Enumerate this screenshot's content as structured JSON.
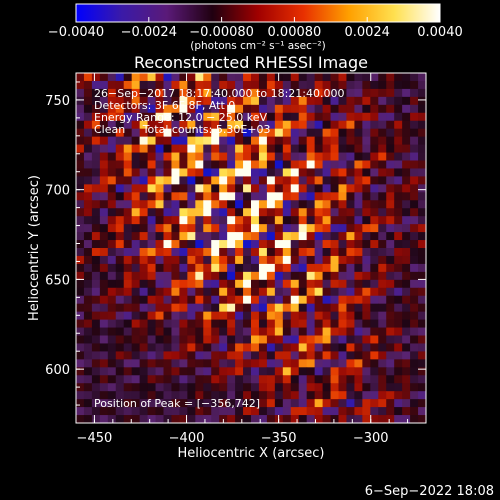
{
  "chart_data": {
    "type": "heatmap",
    "title": "Reconstructed RHESSI Image",
    "xlabel": "Heliocentric X (arcsec)",
    "ylabel": "Heliocentric Y (arcsec)",
    "xlim": [
      -460,
      -270
    ],
    "ylim": [
      570,
      765
    ],
    "x_ticks": [
      -450,
      -400,
      -350,
      -300
    ],
    "x_tick_labels": [
      "−450",
      "−400",
      "−350",
      "−300"
    ],
    "y_ticks": [
      600,
      650,
      700,
      750
    ],
    "y_tick_labels": [
      "600",
      "650",
      "700",
      "750"
    ],
    "colorbar": {
      "range": [
        -0.004,
        0.004
      ],
      "ticks": [
        -0.004,
        -0.0024,
        -0.0008,
        0.0008,
        0.0024,
        0.004
      ],
      "tick_labels": [
        "−0.0040",
        "−0.0024",
        "−0.00080",
        "0.00080",
        "0.0024",
        "0.0040"
      ],
      "units": "(photons cm⁻² s⁻¹ asec⁻²)",
      "colormap": [
        "#0000ff",
        "#3a1aa8",
        "#5a1a78",
        "#200010",
        "#a00000",
        "#e83000",
        "#ffa000",
        "#ffe050",
        "#ffffff"
      ]
    },
    "peak": {
      "x": -356,
      "y": 742
    },
    "grid": false
  },
  "annotations": {
    "time_range": "26−Sep−2017 18:17:40.000 to 18:21:40.000",
    "detectors": "Detectors: 3F 6F 8F, Att 0",
    "energy_range": "Energy Range: 12.0 − 25.0 keV",
    "clean_total": "Clean     Total counts: 5.30E+03",
    "peak_position": "Position of Peak = [−356,742]"
  },
  "footer": {
    "timestamp": "6−Sep−2022 18:08"
  }
}
